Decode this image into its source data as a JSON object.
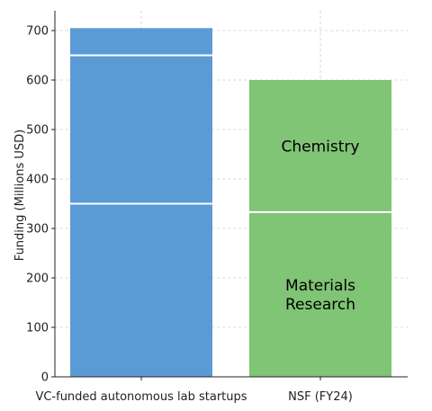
{
  "chart_data": {
    "type": "bar",
    "stacked": true,
    "ylabel": "Funding (Millions USD)",
    "ylim": [
      0,
      740
    ],
    "yticks": [
      0,
      100,
      200,
      300,
      400,
      500,
      600,
      700
    ],
    "grid": true,
    "categories": [
      "VC-funded autonomous lab startups",
      "NSF (FY24)"
    ],
    "bars": [
      {
        "category": "VC-funded autonomous lab startups",
        "color": "#5b9bd5",
        "segments": [
          {
            "value": 350,
            "label": ""
          },
          {
            "value": 300,
            "label": ""
          },
          {
            "value": 55,
            "label": ""
          }
        ]
      },
      {
        "category": "NSF (FY24)",
        "color": "#80c475",
        "segments": [
          {
            "value": 333,
            "label": "Materials\nResearch"
          },
          {
            "value": 267,
            "label": "Chemistry"
          }
        ]
      }
    ]
  }
}
